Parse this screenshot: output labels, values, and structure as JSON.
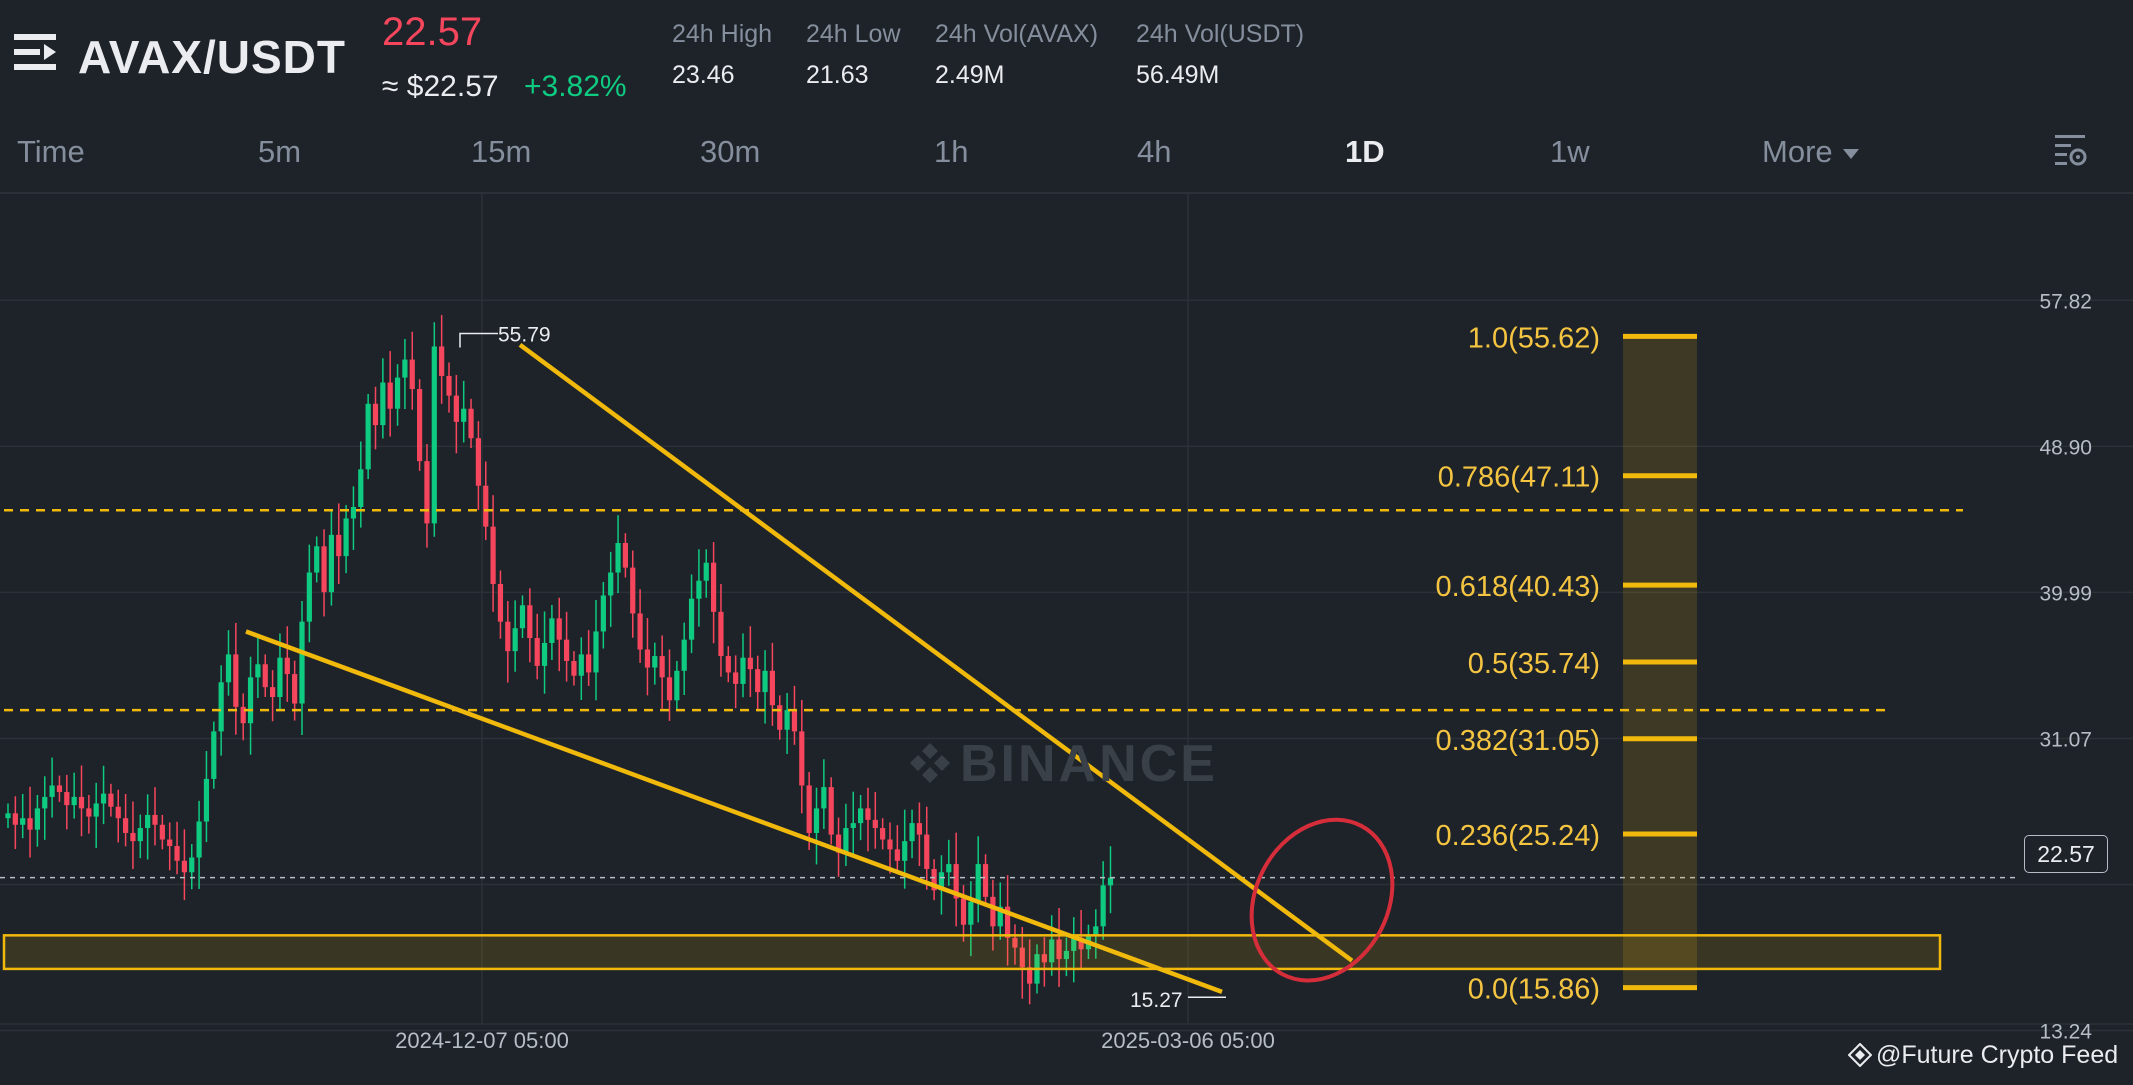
{
  "header": {
    "pair": "AVAX/USDT",
    "last_price": "22.57",
    "approx_usd": "≈ $22.57",
    "change_pct": "+3.82%",
    "stats": [
      {
        "label": "24h High",
        "value": "23.46"
      },
      {
        "label": "24h Low",
        "value": "21.63"
      },
      {
        "label": "24h Vol(AVAX)",
        "value": "2.49M"
      },
      {
        "label": "24h Vol(USDT)",
        "value": "56.49M"
      }
    ]
  },
  "tabs": [
    "Time",
    "5m",
    "15m",
    "30m",
    "1h",
    "4h",
    "1D",
    "1w",
    "More"
  ],
  "active_tab": "1D",
  "watermark": "BINANCE",
  "credit": "@Future Crypto Feed",
  "colors": {
    "up": "#0ecb81",
    "down": "#f6465d",
    "annotation": "#f0b90b",
    "fib_text": "#f5c542",
    "background": "#1e2329",
    "circle": "#d62d3a"
  },
  "chart_data": {
    "type": "candlestick",
    "price_axis_ticks": [
      "57.82",
      "48.90",
      "39.99",
      "31.07",
      "22.57",
      "13.24"
    ],
    "current_price_label": "22.57",
    "date_labels": [
      "2024-12-07 05:00",
      "2025-03-06 05:00"
    ],
    "high_marker": "55.79",
    "low_marker": "15.27",
    "fib_levels": [
      {
        "ratio": 1.0,
        "price": 55.62,
        "label": "1.0(55.62)"
      },
      {
        "ratio": 0.786,
        "price": 47.11,
        "label": "0.786(47.11)"
      },
      {
        "ratio": 0.618,
        "price": 40.43,
        "label": "0.618(40.43)"
      },
      {
        "ratio": 0.5,
        "price": 35.74,
        "label": "0.5(35.74)"
      },
      {
        "ratio": 0.382,
        "price": 31.05,
        "label": "0.382(31.05)"
      },
      {
        "ratio": 0.236,
        "price": 25.24,
        "label": "0.236(25.24)"
      },
      {
        "ratio": 0.0,
        "price": 15.86,
        "label": "0.0(15.86)"
      }
    ],
    "candles_close": [
      26.5,
      25.8,
      26.2,
      25.5,
      26.8,
      27.5,
      28.2,
      27.8,
      27.0,
      27.5,
      26.8,
      26.3,
      27.1,
      27.7,
      26.9,
      26.2,
      25.3,
      24.8,
      25.6,
      26.4,
      25.8,
      24.9,
      24.5,
      23.6,
      22.9,
      23.8,
      26.0,
      28.6,
      31.5,
      34.5,
      36.2,
      33.0,
      32.0,
      34.8,
      35.6,
      34.2,
      33.6,
      36.0,
      35.0,
      33.2,
      38.2,
      41.2,
      42.8,
      40.0,
      43.5,
      42.2,
      44.5,
      45.2,
      47.5,
      51.5,
      50.2,
      52.8,
      51.2,
      53.1,
      54.2,
      52.4,
      48.0,
      44.2,
      55.0,
      53.2,
      52.0,
      50.4,
      51.2,
      49.4,
      46.5,
      44.0,
      40.5,
      38.2,
      36.4,
      37.8,
      39.2,
      37.2,
      35.5,
      36.9,
      38.4,
      37.1,
      35.8,
      34.9,
      36.2,
      35.1,
      37.6,
      39.8,
      41.2,
      43.0,
      41.5,
      38.7,
      36.5,
      35.4,
      36.1,
      34.8,
      33.4,
      35.2,
      37.1,
      39.6,
      40.7,
      41.8,
      38.8,
      36.1,
      35.1,
      34.4,
      36.0,
      35.3,
      33.9,
      35.2,
      33.1,
      31.6,
      32.8,
      31.5,
      28.2,
      25.3,
      26.8,
      28.1,
      25.2,
      24.1,
      25.6,
      25.9,
      26.8,
      26.1,
      25.6,
      24.9,
      24.3,
      23.6,
      24.8,
      25.9,
      25.2,
      23.1,
      21.8,
      22.9,
      23.4,
      21.3,
      19.7,
      21.1,
      23.4,
      21.4,
      19.6,
      20.8,
      18.9,
      18.3,
      17.1,
      16.1,
      17.9,
      17.4,
      18.8,
      17.6,
      18.1,
      18.9,
      18.2,
      19.1,
      19.6,
      22.1,
      22.57
    ]
  }
}
